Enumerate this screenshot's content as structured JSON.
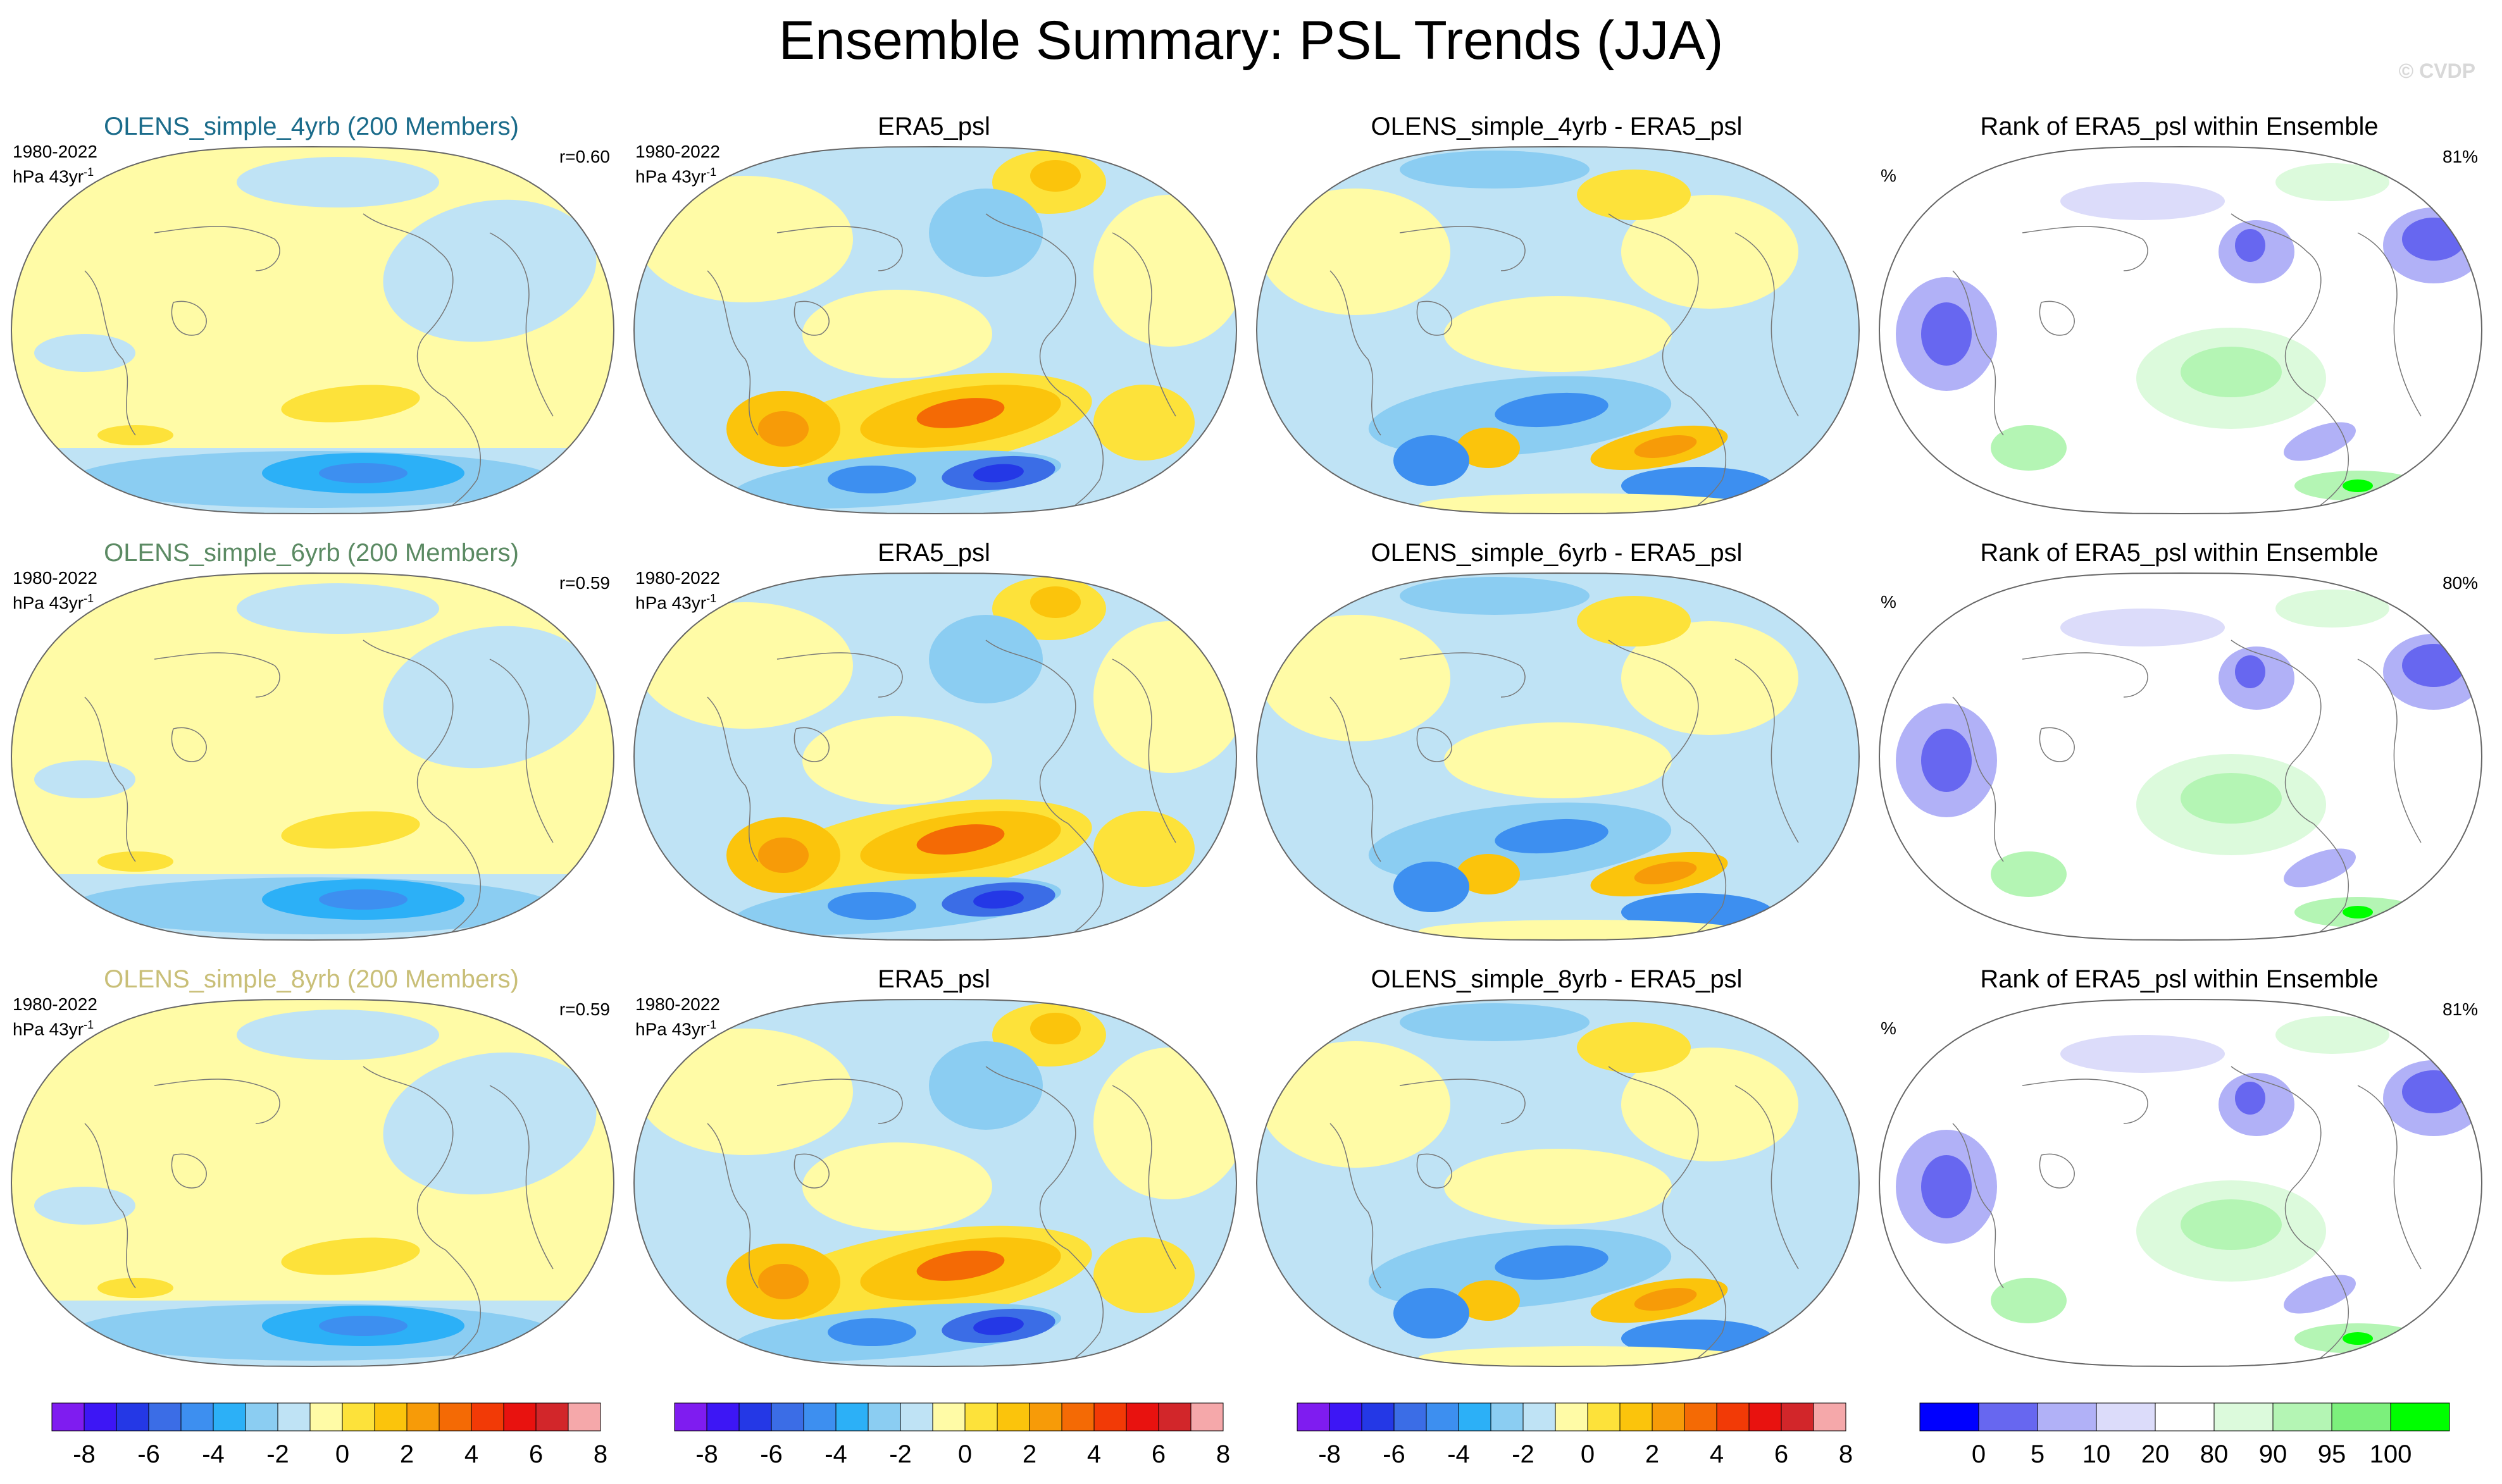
{
  "title": "Ensemble Summary: PSL Trends (JJA)",
  "copyright": "© CVDP",
  "period": "1980-2022",
  "units": "hPa 43yr",
  "units_exp": "-1",
  "pct_label": "%",
  "rows": [
    {
      "model_title": "OLENS_simple_4yrb (200 Members)",
      "title_color": "#1a6b8a",
      "r_value": "r=0.60",
      "obs_title": "ERA5_psl",
      "diff_title": "OLENS_simple_4yrb - ERA5_psl",
      "rank_title": "Rank of ERA5_psl within Ensemble",
      "rank_pct": "81%"
    },
    {
      "model_title": "OLENS_simple_6yrb (200 Members)",
      "title_color": "#5b8a63",
      "r_value": "r=0.59",
      "obs_title": "ERA5_psl",
      "diff_title": "OLENS_simple_6yrb - ERA5_psl",
      "rank_title": "Rank of ERA5_psl within Ensemble",
      "rank_pct": "80%"
    },
    {
      "model_title": "OLENS_simple_8yrb (200 Members)",
      "title_color": "#c9bf78",
      "r_value": "r=0.59",
      "obs_title": "ERA5_psl",
      "diff_title": "OLENS_simple_8yrb - ERA5_psl",
      "rank_title": "Rank of ERA5_psl within Ensemble",
      "rank_pct": "81%"
    }
  ],
  "chart_data": {
    "type": "heatmap",
    "projection": "Robinson (Pacific-centered, global)",
    "trend_colorbar": {
      "colors": [
        "#7f1cf0",
        "#3d16f5",
        "#2438e6",
        "#3b6de6",
        "#3d8ff0",
        "#2cb0f7",
        "#8bcdf2",
        "#bfe3f5",
        "#fffba6",
        "#fde23a",
        "#fbc40c",
        "#f79b08",
        "#f46a05",
        "#f23a06",
        "#e8120f",
        "#d2262a",
        "#f5a8aa"
      ],
      "ticks": [
        "-8",
        "-6",
        "-4",
        "-2",
        "0",
        "2",
        "4",
        "6",
        "8"
      ]
    },
    "rank_colorbar": {
      "colors": [
        "#0000ff",
        "#6767f0",
        "#b1b1f7",
        "#dcdcfa",
        "#ffffff",
        "#dcfadc",
        "#b4f5b4",
        "#7cf07c",
        "#00ff00"
      ],
      "ticks": [
        "0",
        "5",
        "10",
        "20",
        "80",
        "90",
        "95",
        "100"
      ]
    },
    "pattern_correlation": [
      0.6,
      0.59,
      0.59
    ],
    "rank_area_pct": [
      81,
      80,
      81
    ],
    "period": [
      1980,
      2022
    ]
  }
}
